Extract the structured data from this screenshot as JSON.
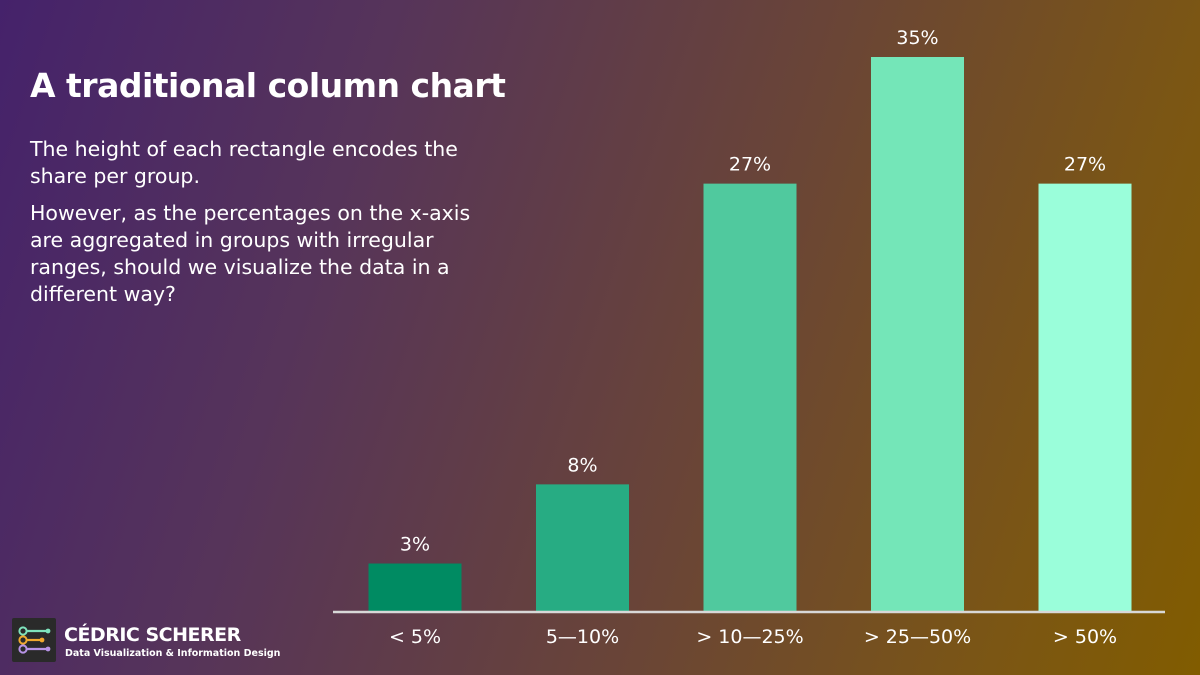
{
  "title": "A traditional column chart",
  "description": [
    "The height of each rectangle encodes the share per group.",
    "However, as the percentages on the x-axis are aggregated in groups with irregular ranges, should we visualize the data in a different way?"
  ],
  "chart_data": {
    "type": "bar",
    "categories": [
      "< 5%",
      "5—10%",
      "> 10—25%",
      "> 25—50%",
      "> 50%"
    ],
    "values": [
      3,
      8,
      27,
      35,
      27
    ],
    "labels": [
      "3%",
      "8%",
      "27%",
      "35%",
      "27%"
    ],
    "colors": [
      "#008b62",
      "#27ac83",
      "#50c99e",
      "#74e6b8",
      "#9afeda"
    ],
    "ylim": [
      0,
      35
    ],
    "grid": false,
    "legend": "none",
    "baseline_color": "#d8d8d8",
    "xlabel": "",
    "ylabel": ""
  },
  "branding": {
    "name": "CÉDRIC SCHERER",
    "tagline": "Data Visualization & Information Design",
    "logo_icon": "circuit-nodes-icon"
  }
}
